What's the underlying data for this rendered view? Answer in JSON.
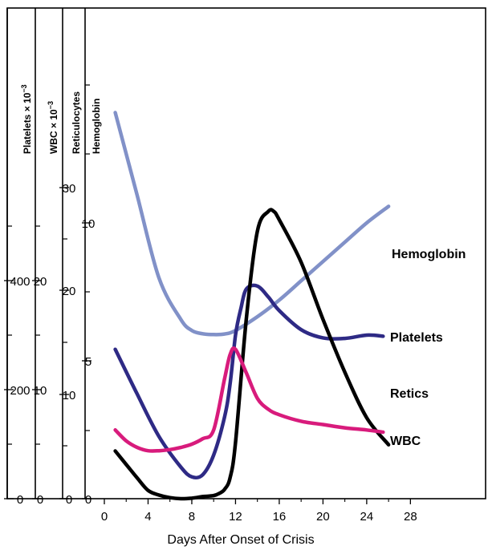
{
  "chart_data": {
    "type": "line",
    "xlabel": "Days After Onset of Crisis",
    "x_ticks": [
      "0",
      "4",
      "8",
      "12",
      "16",
      "20",
      "24",
      "28"
    ],
    "x_range": [
      0,
      30
    ],
    "axes": [
      {
        "key": "platelets",
        "label": "Platelets × 10",
        "label_sup": "−3",
        "ticks": [
          "0",
          "200",
          "400"
        ]
      },
      {
        "key": "wbc",
        "label": "WBC × 10",
        "label_sup": "−3",
        "ticks": [
          "0",
          "10",
          "20"
        ]
      },
      {
        "key": "retics",
        "label": "Reticulocytes",
        "ticks": [
          "0",
          "10",
          "20",
          "30"
        ]
      },
      {
        "key": "hemoglobin",
        "label": "Hemoglobin",
        "ticks": [
          "0",
          "5",
          "10"
        ]
      }
    ],
    "series": [
      {
        "name": "Hemoglobin",
        "color": "#8191c8",
        "axis": "hemoglobin",
        "range": [
          0,
          15
        ],
        "x": [
          1,
          3,
          5,
          7,
          8,
          9,
          10,
          11,
          12,
          14,
          16,
          18,
          20,
          22,
          24,
          26
        ],
        "y": [
          14.0,
          11.0,
          8.0,
          6.5,
          6.1,
          5.98,
          5.95,
          5.97,
          6.1,
          6.6,
          7.2,
          7.9,
          8.6,
          9.3,
          10.0,
          10.6
        ]
      },
      {
        "name": "Platelets",
        "color": "#2e2a85",
        "axis": "platelets",
        "range": [
          0,
          600
        ],
        "x": [
          1,
          3,
          5,
          7,
          8,
          9,
          10,
          11,
          11.5,
          12,
          12.5,
          13,
          14,
          15,
          16,
          18,
          20,
          22,
          24,
          25.5
        ],
        "y": [
          274,
          192,
          114,
          58,
          40,
          44,
          80,
          150,
          210,
          300,
          350,
          385,
          390,
          370,
          345,
          310,
          295,
          294,
          300,
          298
        ]
      },
      {
        "name": "Retics",
        "color": "#000000",
        "axis": "retics",
        "range": [
          0,
          45
        ],
        "x": [
          1,
          2,
          3,
          4,
          5,
          6,
          7,
          8,
          9,
          10,
          10.5,
          11,
          11.5,
          12,
          13,
          14,
          15,
          15.5,
          16,
          18,
          20,
          22,
          24,
          26
        ],
        "y": [
          4.6,
          3.3,
          2.0,
          0.8,
          0.35,
          0.1,
          0.0,
          0.05,
          0.2,
          0.3,
          0.5,
          0.9,
          2.0,
          5.4,
          17.5,
          25.8,
          27.7,
          27.7,
          26.9,
          22.8,
          17.3,
          12.2,
          7.8,
          5.2
        ]
      },
      {
        "name": "WBC",
        "color": "#d81b7c",
        "axis": "wbc",
        "range": [
          0,
          30
        ],
        "x": [
          1,
          2,
          3,
          4,
          5,
          6,
          7,
          8,
          9,
          10,
          11,
          11.5,
          12,
          13,
          14,
          15,
          16,
          18,
          20,
          22,
          24,
          25.5
        ],
        "y": [
          6.3,
          5.3,
          4.7,
          4.4,
          4.4,
          4.5,
          4.7,
          5.0,
          5.5,
          6.3,
          11.0,
          13.2,
          13.7,
          11.5,
          9.2,
          8.2,
          7.7,
          7.1,
          6.8,
          6.5,
          6.3,
          6.1
        ]
      }
    ]
  }
}
